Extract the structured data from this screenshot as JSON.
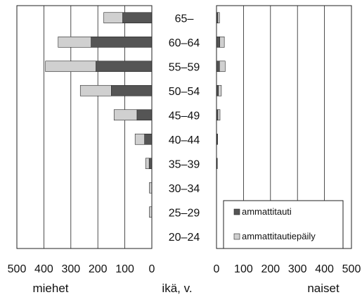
{
  "chart_data": {
    "type": "bar",
    "orientation": "horizontal",
    "layout": "population-pyramid",
    "stacked": true,
    "categories": [
      "65–",
      "60–64",
      "55–59",
      "50–54",
      "45–49",
      "40–44",
      "35–39",
      "30–34",
      "25–29",
      "20–24"
    ],
    "center_label": "ikä, v.",
    "panels": [
      {
        "id": "men",
        "label": "miehet",
        "direction": "left",
        "xlim": [
          0,
          500
        ],
        "ticks": [
          500,
          400,
          300,
          200,
          100,
          0
        ],
        "grid": true,
        "series": [
          {
            "name": "ammattitauti",
            "values": [
              108,
              225,
              207,
              150,
              55,
              27,
              10,
              0,
              0,
              0
            ]
          },
          {
            "name": "ammattitautiepäily",
            "values": [
              70,
              122,
              187,
              115,
              85,
              35,
              13,
              9,
              9,
              0
            ]
          }
        ]
      },
      {
        "id": "women",
        "label": "naiset",
        "direction": "right",
        "xlim": [
          0,
          500
        ],
        "ticks": [
          0,
          100,
          200,
          300,
          400,
          500
        ],
        "grid": true,
        "series": [
          {
            "name": "ammattitauti",
            "values": [
              5,
              12,
              11,
              7,
              5,
              3,
              2,
              0,
              0,
              0
            ]
          },
          {
            "name": "ammattitautiepäily",
            "values": [
              6,
              17,
              21,
              11,
              8,
              1,
              1,
              0,
              0,
              0
            ]
          }
        ]
      }
    ],
    "legend": {
      "placement": "bottom-right",
      "panel": "women",
      "entries": [
        "ammattitauti",
        "ammattitautiepäily"
      ]
    },
    "colors": {
      "ammattitauti": "#555555",
      "ammattitautiepäily": "#d0d0d0",
      "gridline": "#222222",
      "frame": "#222222"
    }
  }
}
